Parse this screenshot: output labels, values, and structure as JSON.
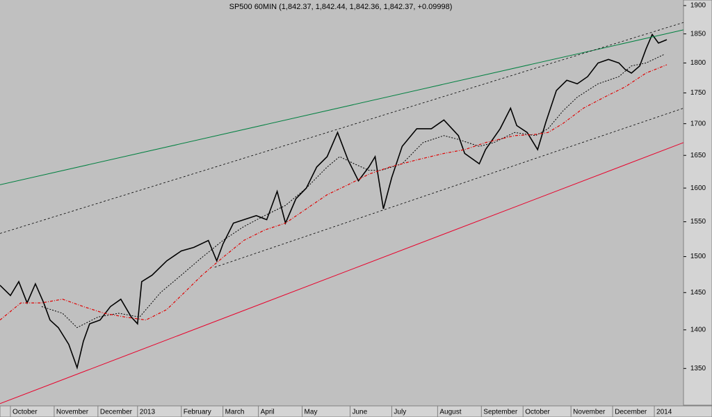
{
  "chart_data": {
    "type": "line",
    "title": "SP500 60MIN (1,842.37, 1,842.44, 1,842.36, 1,842.37, +0.09998)",
    "log_scale": true,
    "grid": false,
    "xlim": [
      0,
      328
    ],
    "xticks": [
      {
        "value": 5,
        "label": "October"
      },
      {
        "value": 26,
        "label": "November"
      },
      {
        "value": 47,
        "label": "December"
      },
      {
        "value": 66,
        "label": "2013"
      },
      {
        "value": 87,
        "label": "February"
      },
      {
        "value": 107,
        "label": "March"
      },
      {
        "value": 124,
        "label": "April"
      },
      {
        "value": 145,
        "label": "May"
      },
      {
        "value": 168,
        "label": "June"
      },
      {
        "value": 188,
        "label": "July"
      },
      {
        "value": 210,
        "label": "August"
      },
      {
        "value": 231,
        "label": "September"
      },
      {
        "value": 251,
        "label": "October"
      },
      {
        "value": 274,
        "label": "November"
      },
      {
        "value": 294,
        "label": "December"
      },
      {
        "value": 314,
        "label": "2014"
      }
    ],
    "ylim": [
      1305,
      1910
    ],
    "yticks": [
      1350,
      1400,
      1450,
      1500,
      1550,
      1600,
      1650,
      1700,
      1750,
      1800,
      1850,
      1900
    ],
    "series": [
      {
        "color": "#000000",
        "dash": "none",
        "width": 1.6,
        "x": [
          0,
          5,
          9,
          13,
          17,
          21,
          24,
          28,
          33,
          37,
          40,
          43,
          48,
          53,
          58,
          63,
          66,
          68,
          73,
          80,
          87,
          93,
          100,
          104,
          107,
          112,
          117,
          123,
          128,
          133,
          137,
          142,
          147,
          152,
          157,
          162,
          167,
          172,
          177,
          180,
          184,
          188,
          193,
          200,
          207,
          213,
          220,
          223,
          230,
          233,
          240,
          245,
          248,
          253,
          258,
          262,
          267,
          272,
          277,
          282,
          287,
          292,
          297,
          300,
          303,
          307,
          310,
          313,
          316,
          320
        ],
        "values": [
          1460,
          1446,
          1465,
          1436,
          1462,
          1436,
          1413,
          1403,
          1381,
          1351,
          1385,
          1408,
          1413,
          1431,
          1441,
          1417,
          1408,
          1465,
          1474,
          1494,
          1508,
          1513,
          1523,
          1494,
          1518,
          1548,
          1553,
          1559,
          1553,
          1595,
          1548,
          1584,
          1600,
          1632,
          1648,
          1686,
          1643,
          1611,
          1632,
          1648,
          1569,
          1616,
          1664,
          1692,
          1692,
          1706,
          1681,
          1653,
          1637,
          1659,
          1692,
          1725,
          1697,
          1686,
          1659,
          1703,
          1754,
          1771,
          1765,
          1777,
          1800,
          1806,
          1800,
          1789,
          1783,
          1795,
          1824,
          1849,
          1834,
          1840
        ]
      },
      {
        "color": "#000000",
        "dash": "2,2",
        "width": 1,
        "x": [
          20,
          30,
          37,
          47,
          57,
          67,
          77,
          87,
          97,
          107,
          117,
          127,
          137,
          147,
          157,
          163,
          170,
          177,
          183,
          193,
          203,
          213,
          220,
          230,
          237,
          247,
          257,
          263,
          270,
          277,
          287,
          297,
          303,
          310,
          319
        ],
        "values": [
          1431,
          1422,
          1403,
          1417,
          1422,
          1417,
          1450,
          1474,
          1499,
          1523,
          1543,
          1559,
          1574,
          1600,
          1632,
          1648,
          1637,
          1627,
          1627,
          1637,
          1670,
          1681,
          1675,
          1664,
          1670,
          1686,
          1681,
          1692,
          1720,
          1743,
          1765,
          1777,
          1795,
          1800,
          1815
        ]
      },
      {
        "color": "#e00000",
        "dash": "4,2,1,2",
        "width": 1.2,
        "x": [
          0,
          10,
          20,
          30,
          40,
          50,
          60,
          70,
          80,
          87,
          97,
          107,
          117,
          127,
          137,
          147,
          157,
          167,
          177,
          187,
          200,
          213,
          223,
          233,
          247,
          257,
          263,
          270,
          280,
          290,
          300,
          310,
          320
        ],
        "values": [
          1413,
          1436,
          1436,
          1441,
          1431,
          1422,
          1417,
          1413,
          1427,
          1446,
          1474,
          1499,
          1523,
          1538,
          1548,
          1569,
          1590,
          1605,
          1621,
          1632,
          1643,
          1653,
          1659,
          1670,
          1681,
          1683,
          1686,
          1700,
          1725,
          1743,
          1760,
          1783,
          1797
        ]
      },
      {
        "color": "#008040",
        "dash": "none",
        "width": 1,
        "x": [
          0,
          328
        ],
        "values": [
          1605,
          1857
        ]
      },
      {
        "color": "#e8002a",
        "dash": "none",
        "width": 1,
        "x": [
          0,
          328
        ],
        "values": [
          1306,
          1670
        ]
      },
      {
        "color": "#000000",
        "dash": "3,3",
        "width": 0.8,
        "x": [
          0,
          328
        ],
        "values": [
          1533,
          1870
        ]
      },
      {
        "color": "#000000",
        "dash": "3,3",
        "width": 0.8,
        "x": [
          103,
          328
        ],
        "values": [
          1485,
          1725
        ]
      }
    ]
  }
}
